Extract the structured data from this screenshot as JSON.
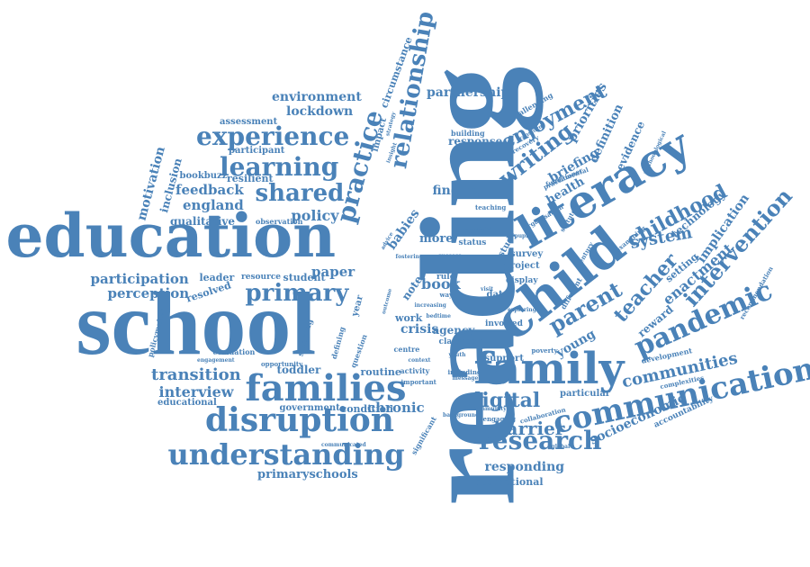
{
  "colors": {
    "word": "#4a82b8",
    "background": "#ffffff"
  },
  "words": [
    "reading",
    "school",
    "education",
    "child",
    "literacy",
    "family",
    "families",
    "disruption",
    "communication",
    "understanding",
    "research",
    "pandemic",
    "experience",
    "learning",
    "practice",
    "relationship",
    "primary",
    "shared",
    "writing",
    "enjoyment",
    "parent",
    "teacher",
    "childhood",
    "intervention",
    "digital",
    "barrier",
    "communities",
    "transition",
    "interview",
    "participation",
    "perception",
    "resolved",
    "feedback",
    "england",
    "policy",
    "motivation",
    "inclusion",
    "qualitative",
    "bookbuzz",
    "environment",
    "lockdown",
    "assessment",
    "participant",
    "resilient",
    "partnership",
    "response",
    "building",
    "finding",
    "babies",
    "more",
    "book",
    "note",
    "crisis",
    "agency",
    "classroom",
    "toddler",
    "routine",
    "chronic",
    "condition",
    "government",
    "educational",
    "primaryschools",
    "responding",
    "international",
    "socioeconomic",
    "accountability",
    "particular",
    "support",
    "young",
    "system",
    "technology",
    "implication",
    "enactment",
    "reward",
    "setting",
    "priorities",
    "definition",
    "evidence",
    "briefing",
    "health",
    "project",
    "survey",
    "display",
    "study",
    "data",
    "many",
    "status",
    "paper",
    "leader",
    "resource",
    "student",
    "evaluation",
    "circumstance",
    "impact",
    "observation",
    "policymaker",
    "activity",
    "including",
    "important",
    "significant",
    "collaboration",
    "engaging",
    "recovery",
    "practitioner",
    "challenging",
    "fundamental",
    "statutory",
    "century",
    "different",
    "examining",
    "involved",
    "development",
    "complexities",
    "recommendation",
    "communicated",
    "sleeping",
    "defining",
    "work",
    "year",
    "centre",
    "rule",
    "way",
    "lens",
    "poverty",
    "organisation",
    "background",
    "global",
    "question",
    "opportunity",
    "engagement",
    "methodological",
    "message",
    "transform",
    "insight",
    "exploring",
    "visit",
    "youth",
    "context",
    "pupil",
    "teaching",
    "advice",
    "fostering",
    "increasing",
    "outcome",
    "community",
    "strategy",
    "success",
    "bedtime",
    "story"
  ]
}
